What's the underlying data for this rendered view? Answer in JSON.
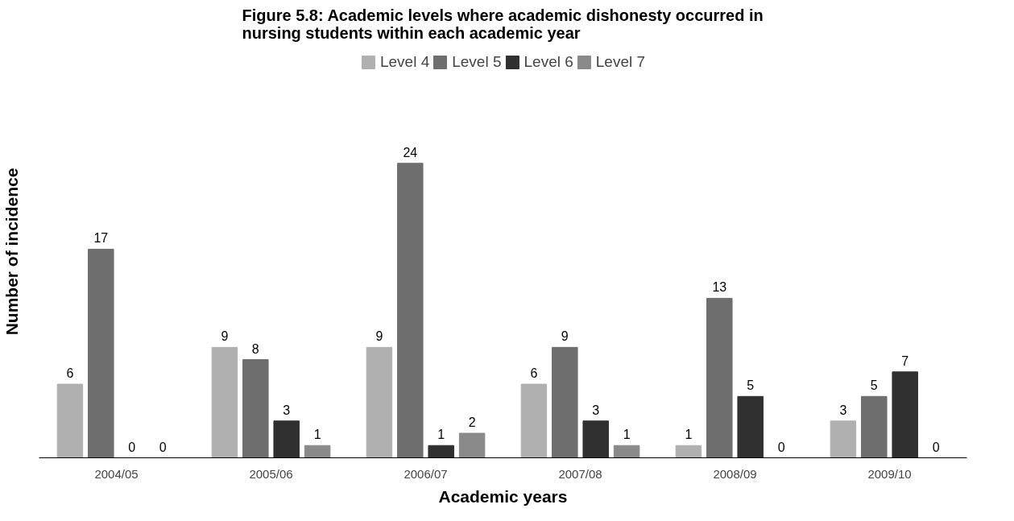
{
  "chart_data": {
    "type": "bar",
    "title": "Figure 5.8: Academic levels where academic dishonesty occurred in\nnursing students within each academic year",
    "xlabel": "Academic years",
    "ylabel": "Number of incidence",
    "categories": [
      "2004/05",
      "2005/06",
      "2006/07",
      "2007/08",
      "2008/09",
      "2009/10"
    ],
    "series": [
      {
        "name": "Level 4",
        "color": "#b0b0b0",
        "values": [
          6,
          9,
          9,
          6,
          1,
          3
        ]
      },
      {
        "name": "Level 5",
        "color": "#6e6e6e",
        "values": [
          17,
          8,
          24,
          9,
          13,
          5
        ]
      },
      {
        "name": "Level 6",
        "color": "#303030",
        "values": [
          0,
          3,
          1,
          3,
          5,
          7
        ]
      },
      {
        "name": "Level 7",
        "color": "#8a8a8a",
        "values": [
          0,
          1,
          2,
          1,
          0,
          0
        ]
      }
    ],
    "data_labels": true,
    "legend": "top",
    "grid": false,
    "tick_labels": "x"
  }
}
